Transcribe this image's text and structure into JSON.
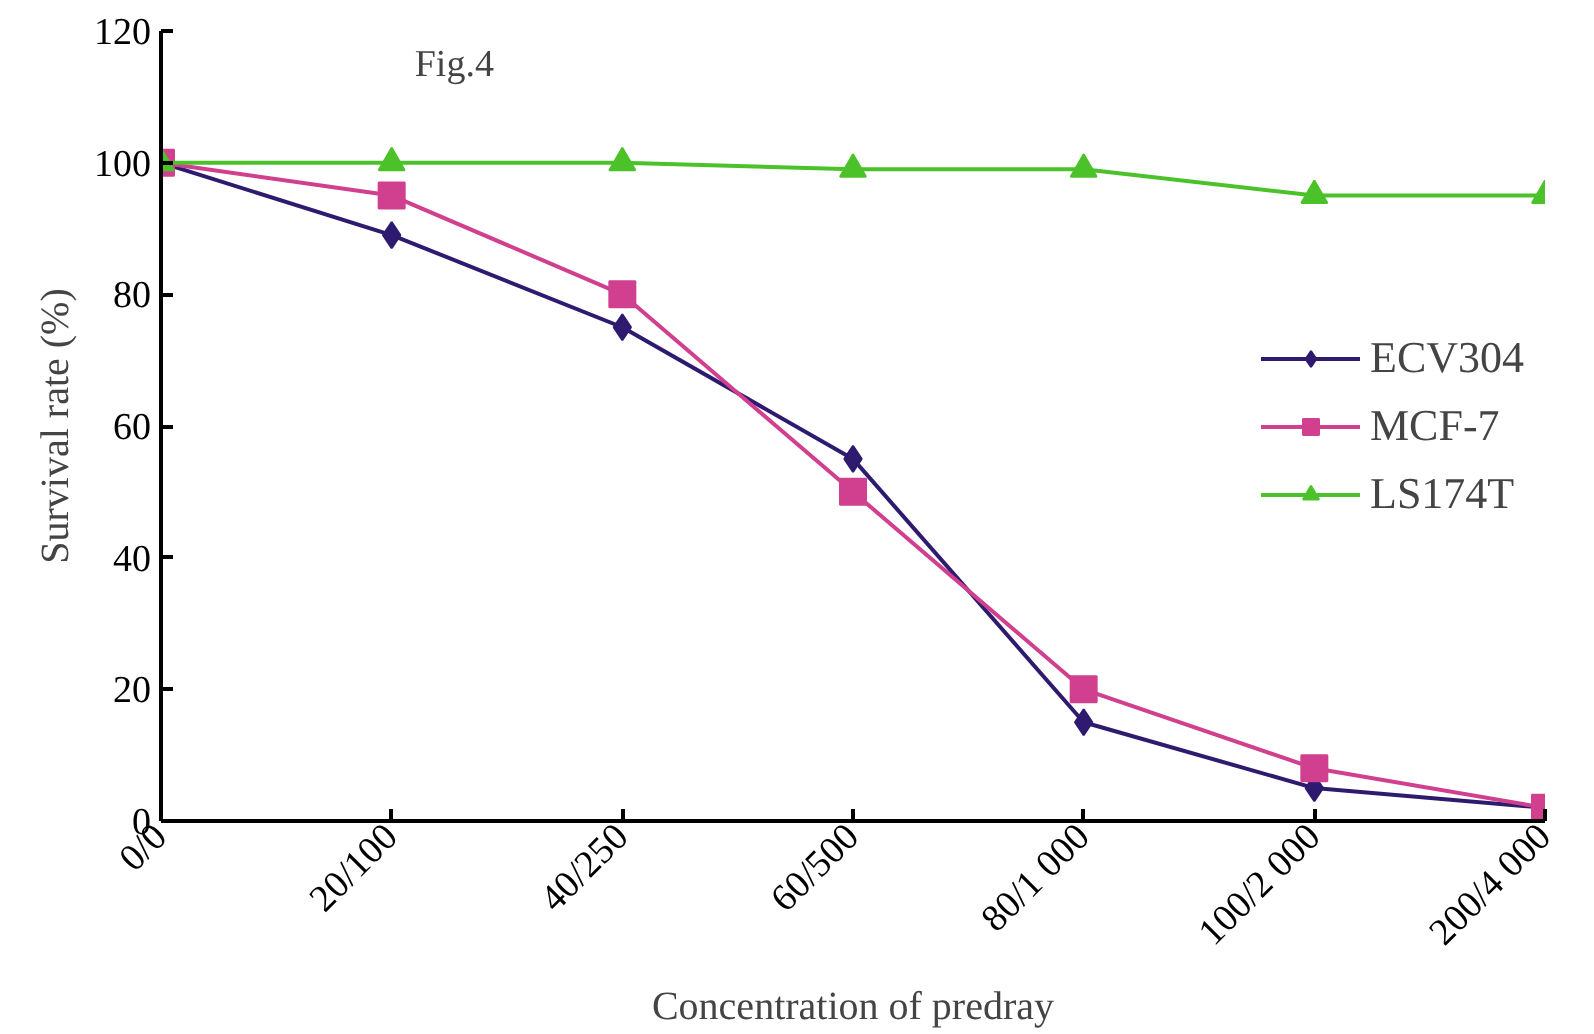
{
  "chart_data": {
    "type": "line",
    "xlabel": "Concentration of predray",
    "ylabel": "Survival rate (%)",
    "annotations": [
      "Fig.4"
    ],
    "categories": [
      "0/0",
      "20/100",
      "40/250",
      "60/500",
      "80/1 000",
      "100/2 000",
      "200/4 000"
    ],
    "ylim": [
      0,
      120
    ],
    "yticks": [
      0,
      20,
      40,
      60,
      80,
      100,
      120
    ],
    "grid": false,
    "legend": "right",
    "series": [
      {
        "name": "ECV304",
        "color": "#2e1a6e",
        "marker": "diamond",
        "values": [
          100,
          89,
          75,
          55,
          15,
          5,
          2
        ]
      },
      {
        "name": "MCF-7",
        "color": "#d0408e",
        "marker": "square",
        "values": [
          100,
          95,
          80,
          50,
          20,
          8,
          2
        ]
      },
      {
        "name": "LS174T",
        "color": "#4cc22a",
        "marker": "triangle",
        "values": [
          100,
          100,
          100,
          99,
          99,
          95,
          95
        ]
      }
    ]
  }
}
